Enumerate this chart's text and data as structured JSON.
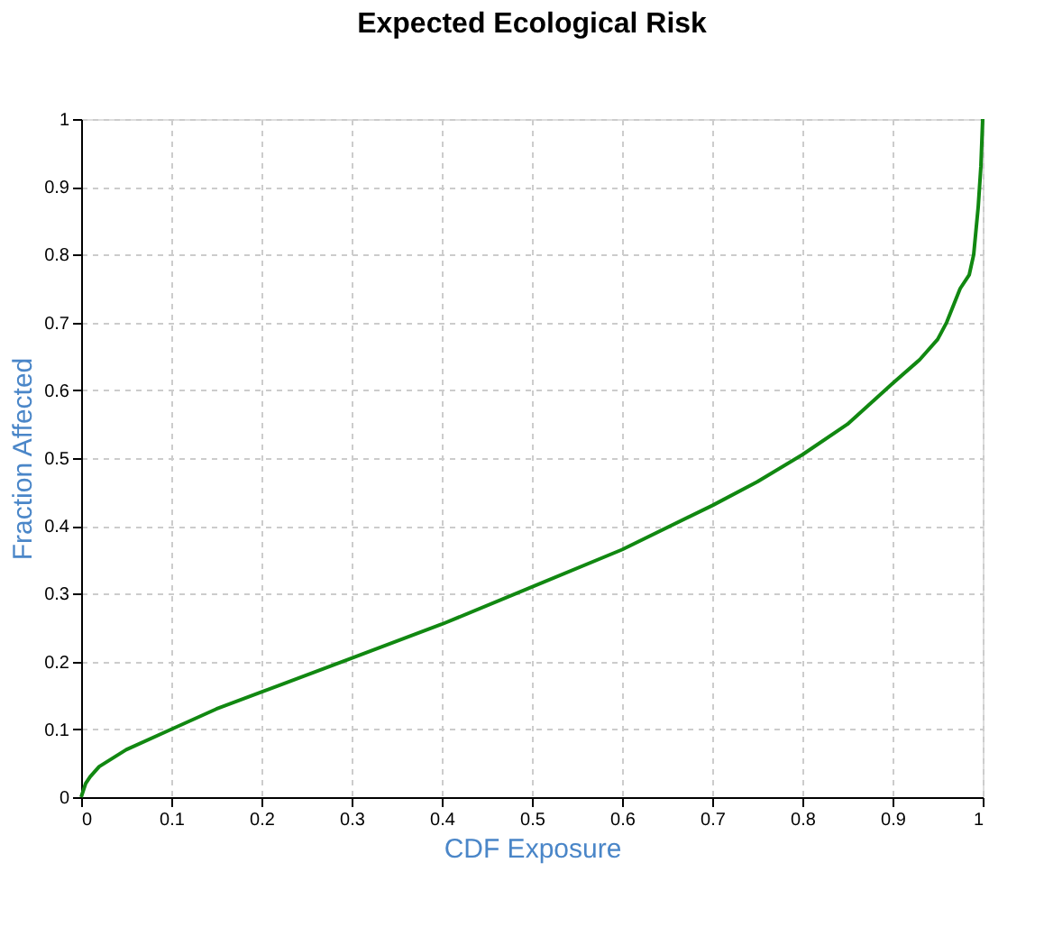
{
  "chart_data": {
    "type": "line",
    "title": "Expected Ecological Risk",
    "xlabel": "CDF Exposure",
    "ylabel": "Fraction Affected",
    "x": [
      0,
      0.005,
      0.01,
      0.02,
      0.05,
      0.1,
      0.15,
      0.2,
      0.3,
      0.4,
      0.5,
      0.6,
      0.7,
      0.75,
      0.8,
      0.85,
      0.9,
      0.93,
      0.95,
      0.96,
      0.975,
      0.985,
      0.99,
      0.995,
      0.998,
      1
    ],
    "series": [
      {
        "color": "#118811",
        "values": [
          0,
          0.02,
          0.03,
          0.045,
          0.07,
          0.1,
          0.13,
          0.155,
          0.205,
          0.255,
          0.31,
          0.365,
          0.43,
          0.465,
          0.505,
          0.55,
          0.61,
          0.645,
          0.675,
          0.7,
          0.75,
          0.77,
          0.8,
          0.87,
          0.93,
          1
        ]
      }
    ],
    "xlim": [
      0,
      1
    ],
    "ylim": [
      0,
      1
    ],
    "xticks": [
      0,
      0.1,
      0.2,
      0.3,
      0.4,
      0.5,
      0.6,
      0.7,
      0.8,
      0.9,
      1
    ],
    "yticks": [
      0,
      0.1,
      0.2,
      0.3,
      0.4,
      0.5,
      0.6,
      0.7,
      0.8,
      0.9,
      1
    ],
    "grid": true,
    "marker": "none",
    "line_style": "solid"
  }
}
